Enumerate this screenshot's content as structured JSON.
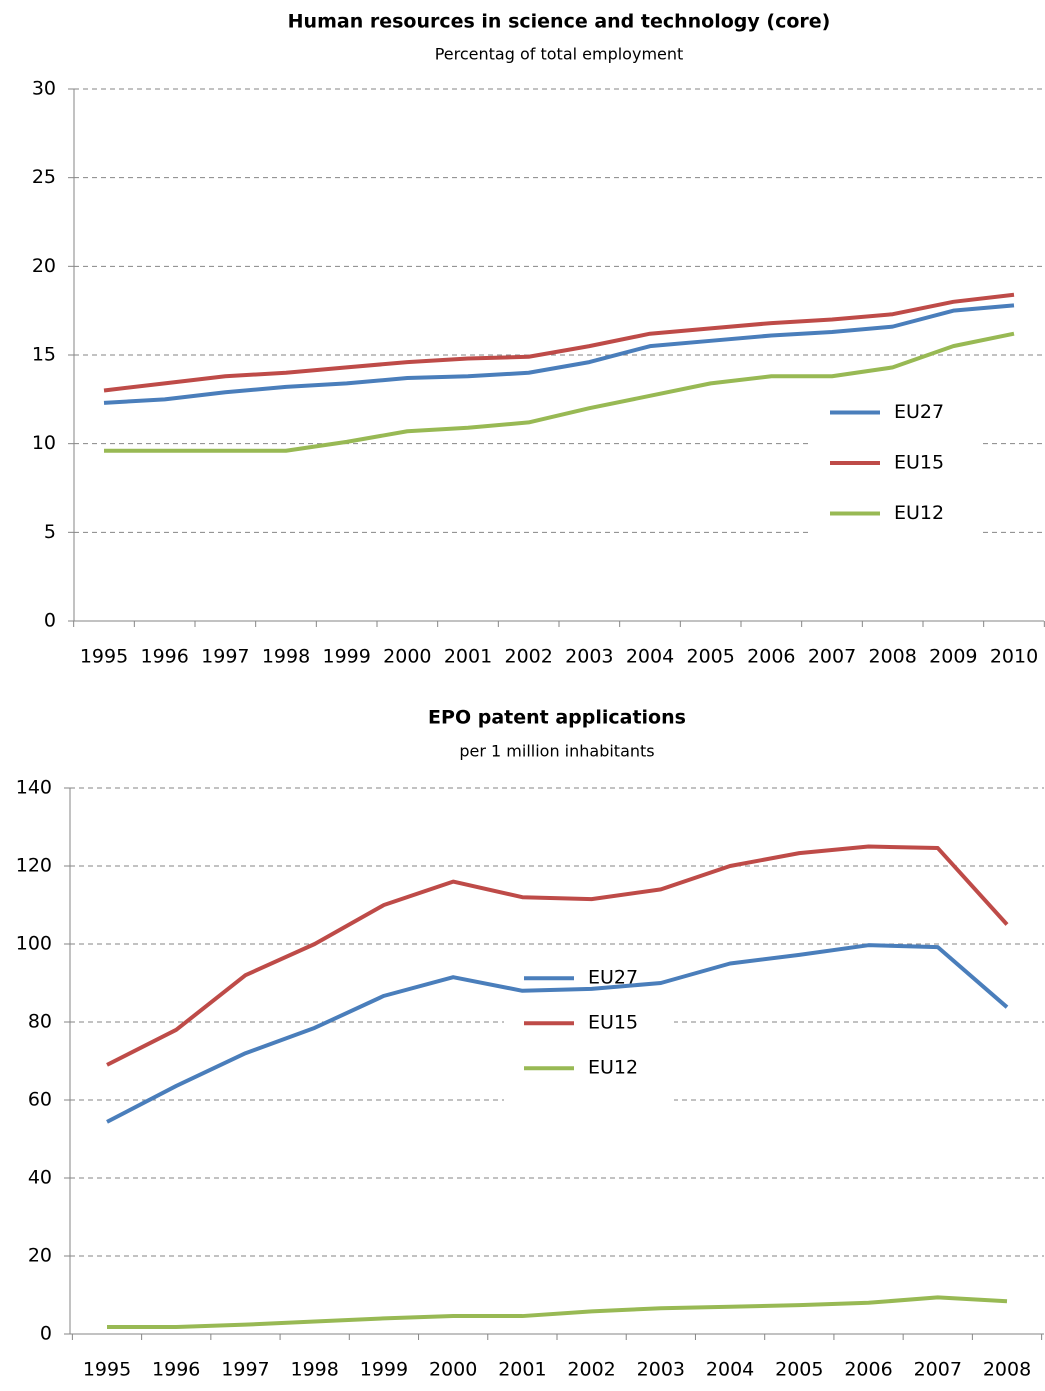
{
  "chart_data": [
    {
      "type": "line",
      "title": "Human resources in science and technology (core)",
      "subtitle": "Percentag of total employment",
      "categories": [
        "1995",
        "1996",
        "1997",
        "1998",
        "1999",
        "2000",
        "2001",
        "2002",
        "2003",
        "2004",
        "2005",
        "2006",
        "2007",
        "2008",
        "2009",
        "2010"
      ],
      "series": [
        {
          "name": "EU27",
          "color": "#4a7ebb",
          "values": [
            12.3,
            12.5,
            12.9,
            13.2,
            13.4,
            13.7,
            13.8,
            14.0,
            14.6,
            15.5,
            15.8,
            16.1,
            16.3,
            16.6,
            17.5,
            17.8
          ]
        },
        {
          "name": "EU15",
          "color": "#be4b48",
          "values": [
            13.0,
            13.4,
            13.8,
            14.0,
            14.3,
            14.6,
            14.8,
            14.9,
            15.5,
            16.2,
            16.5,
            16.8,
            17.0,
            17.3,
            18.0,
            18.4
          ]
        },
        {
          "name": "EU12",
          "color": "#98b954",
          "values": [
            9.6,
            9.6,
            9.6,
            9.6,
            10.1,
            10.7,
            10.9,
            11.2,
            12.0,
            12.7,
            13.4,
            13.8,
            13.8,
            14.3,
            15.5,
            16.2
          ]
        }
      ],
      "ylim": [
        0,
        30
      ],
      "yticks": [
        0,
        5,
        10,
        15,
        20,
        25,
        30
      ],
      "grid": true,
      "legend": "right"
    },
    {
      "type": "line",
      "title": "EPO patent applications",
      "subtitle": "per 1 million inhabitants",
      "categories": [
        "1995",
        "1996",
        "1997",
        "1998",
        "1999",
        "2000",
        "2001",
        "2002",
        "2003",
        "2004",
        "2005",
        "2006",
        "2007",
        "2008"
      ],
      "series": [
        {
          "name": "EU27",
          "color": "#4a7ebb",
          "values": [
            54.4,
            63.6,
            72,
            78.5,
            86.7,
            91.5,
            88,
            88.5,
            90,
            95,
            97.2,
            99.7,
            99.2,
            83.8
          ]
        },
        {
          "name": "EU15",
          "color": "#be4b48",
          "values": [
            69,
            78,
            92,
            100,
            110,
            116,
            112,
            111.5,
            114,
            120,
            123.3,
            125,
            124.6,
            105
          ]
        },
        {
          "name": "EU12",
          "color": "#98b954",
          "values": [
            1.8,
            1.8,
            2.4,
            3.2,
            4,
            4.6,
            4.6,
            5.8,
            6.6,
            7,
            7.4,
            8,
            9.4,
            8.4
          ]
        }
      ],
      "ylim": [
        0,
        140
      ],
      "yticks": [
        0,
        20,
        40,
        60,
        80,
        100,
        120,
        140
      ],
      "grid": true,
      "legend": "center"
    }
  ]
}
